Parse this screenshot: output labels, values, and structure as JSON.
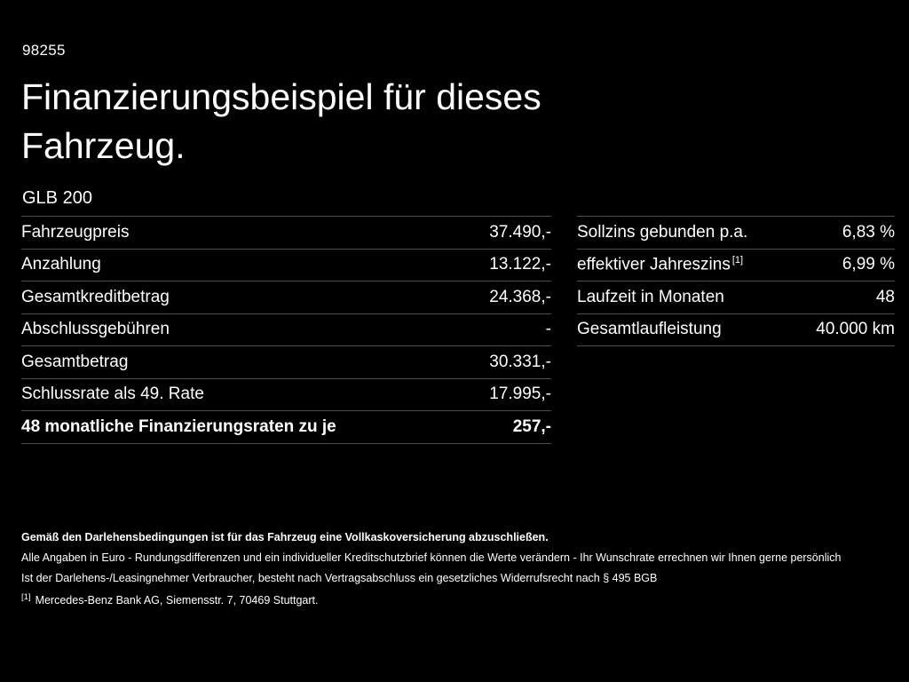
{
  "colors": {
    "background": "#000000",
    "text": "#ffffff",
    "divider": "#4f4f4f"
  },
  "header": {
    "vehicle_id": "98255",
    "title_line1": "Finanzierungsbeispiel für dieses",
    "title_line2": "Fahrzeug.",
    "model": "GLB 200"
  },
  "financing": {
    "left_rows": [
      {
        "label": "Fahrzeugpreis",
        "value": "37.490,-"
      },
      {
        "label": "Anzahlung",
        "value": "13.122,-"
      },
      {
        "label": "Gesamtkreditbetrag",
        "value": "24.368,-"
      },
      {
        "label": "Abschlussgebühren",
        "value": "-"
      },
      {
        "label": "Gesamtbetrag",
        "value": "30.331,-"
      },
      {
        "label": "Schlussrate als 49. Rate",
        "value": "17.995,-"
      },
      {
        "label": "48 monatliche Finanzierungsraten zu je",
        "value": "257,-"
      }
    ],
    "right_rows": [
      {
        "label": "Sollzins gebunden p.a.",
        "sup": "",
        "value": "6,83 %"
      },
      {
        "label": "effektiver Jahreszins",
        "sup": "[1]",
        "value": "6,99 %"
      },
      {
        "label": "Laufzeit in Monaten",
        "sup": "",
        "value": "48"
      },
      {
        "label": "Gesamtlaufleistung",
        "sup": "",
        "value": "40.000 km"
      }
    ]
  },
  "footer": {
    "insurance_note": "Gemäß den Darlehensbedingungen ist für das Fahrzeug eine Vollkaskoversicherung abzuschließen.",
    "disclaimer1": "Alle Angaben in Euro - Rundungsdifferenzen und ein individueller Kreditschutzbrief können die Werte verändern - Ihr Wunschrate errechnen wir Ihnen gerne persönlich",
    "disclaimer2": "Ist der Darlehens-/Leasingnehmer Verbraucher, besteht nach Vertragsabschluss ein gesetzliches Widerrufsrecht nach § 495 BGB",
    "footnote_marker": "[1]",
    "footnote_text": "Mercedes-Benz Bank AG, Siemensstr. 7, 70469 Stuttgart."
  }
}
